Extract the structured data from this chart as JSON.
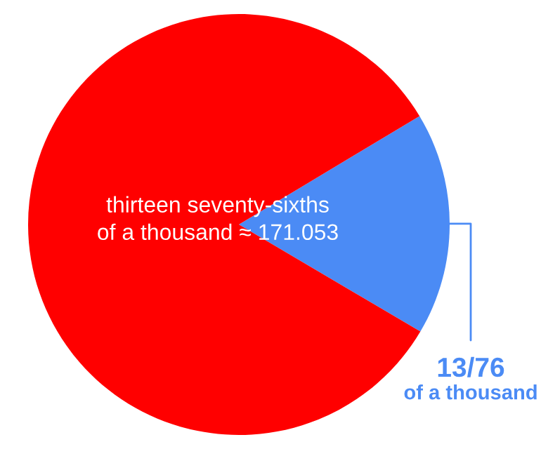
{
  "chart_data": {
    "type": "pie",
    "categories": [
      "13/76\nof a thousand",
      null
    ],
    "values": [
      17.1,
      82.9
    ],
    "colors": [
      "#4b8bf5",
      "#ff0000"
    ],
    "annotations": [
      "thirteen seventy-sixths\nof a thousand ≈ 171.053"
    ],
    "legend": false
  }
}
